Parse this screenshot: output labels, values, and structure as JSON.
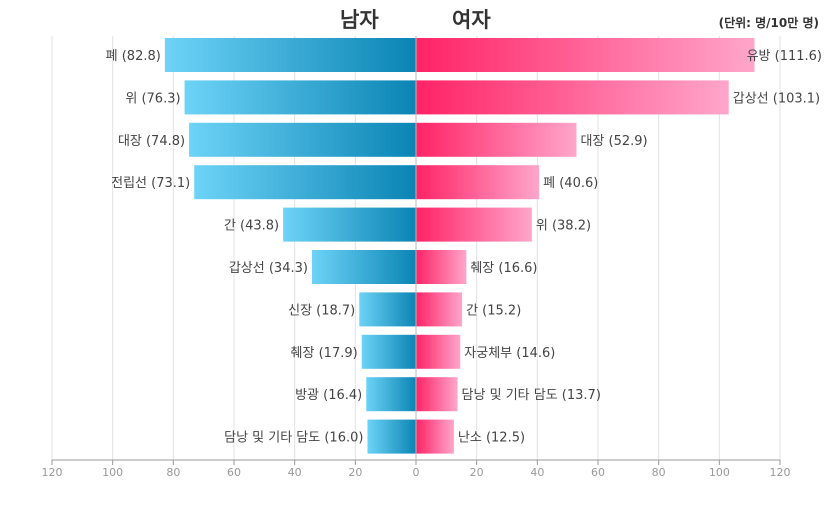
{
  "chart_data": {
    "type": "bar",
    "title_left": "남자",
    "title_right": "여자",
    "unit": "(단위: 명/10만 명)",
    "xlim": [
      0,
      120
    ],
    "ticks": [
      120,
      100,
      80,
      60,
      40,
      20,
      0,
      20,
      40,
      60,
      80,
      100,
      120
    ],
    "grid": true,
    "colors": {
      "male_start": "#6dd3f7",
      "male_end": "#0a84b4",
      "female_start": "#ff2366",
      "female_end": "#ffa6cb"
    },
    "male": [
      {
        "label": "폐",
        "value": 82.8
      },
      {
        "label": "위",
        "value": 76.3
      },
      {
        "label": "대장",
        "value": 74.8
      },
      {
        "label": "전립선",
        "value": 73.1
      },
      {
        "label": "간",
        "value": 43.8
      },
      {
        "label": "갑상선",
        "value": 34.3
      },
      {
        "label": "신장",
        "value": 18.7
      },
      {
        "label": "췌장",
        "value": 17.9
      },
      {
        "label": "방광",
        "value": 16.4
      },
      {
        "label": "담낭 및 기타 담도",
        "value": 16.0
      }
    ],
    "female": [
      {
        "label": "유방",
        "value": 111.6
      },
      {
        "label": "갑상선",
        "value": 103.1
      },
      {
        "label": "대장",
        "value": 52.9
      },
      {
        "label": "폐",
        "value": 40.6
      },
      {
        "label": "위",
        "value": 38.2
      },
      {
        "label": "췌장",
        "value": 16.6
      },
      {
        "label": "간",
        "value": 15.2
      },
      {
        "label": "자궁체부",
        "value": 14.6
      },
      {
        "label": "담낭 및 기타 담도",
        "value": 13.7
      },
      {
        "label": "난소",
        "value": 12.5
      }
    ]
  }
}
